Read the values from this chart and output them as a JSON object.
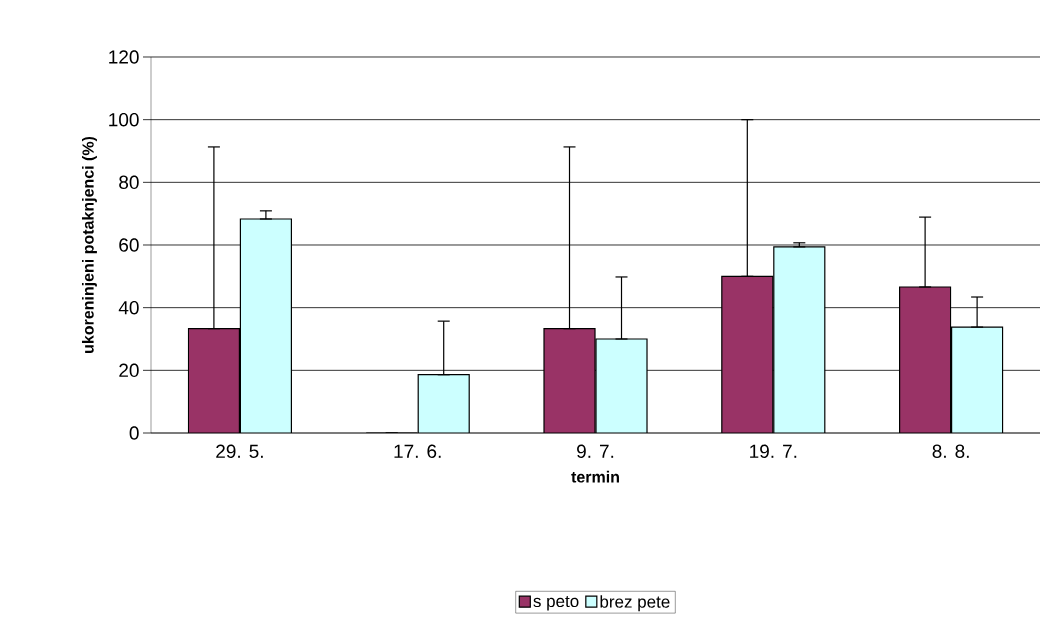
{
  "chart_data": {
    "type": "bar",
    "xlabel": "termin",
    "ylabel": "ukoreninjeni potaknjenci (%)",
    "categories": [
      "29. 5.",
      "17. 6.",
      "9. 7.",
      "19. 7.",
      "8. 8."
    ],
    "series": [
      {
        "name": "s peto",
        "color": "#993366",
        "values": [
          33.3,
          0,
          33.3,
          50,
          46.6
        ],
        "errors": [
          [
            33.3,
            91.3
          ],
          null,
          [
            33.3,
            91.3
          ],
          [
            50,
            100
          ],
          [
            46.6,
            68.9
          ]
        ]
      },
      {
        "name": "brez pete",
        "color": "#ccffff",
        "values": [
          68.3,
          18.6,
          30,
          59.4,
          33.8
        ],
        "errors": [
          [
            68.3,
            70.9
          ],
          [
            18.6,
            35.7
          ],
          [
            30,
            49.8
          ],
          [
            59.4,
            60.7
          ],
          [
            33.8,
            43.4
          ]
        ]
      }
    ],
    "ylim": [
      0,
      120
    ],
    "yticks": [
      0,
      20,
      40,
      60,
      80,
      100,
      120
    ],
    "grid": "y",
    "legend": "bottom"
  }
}
